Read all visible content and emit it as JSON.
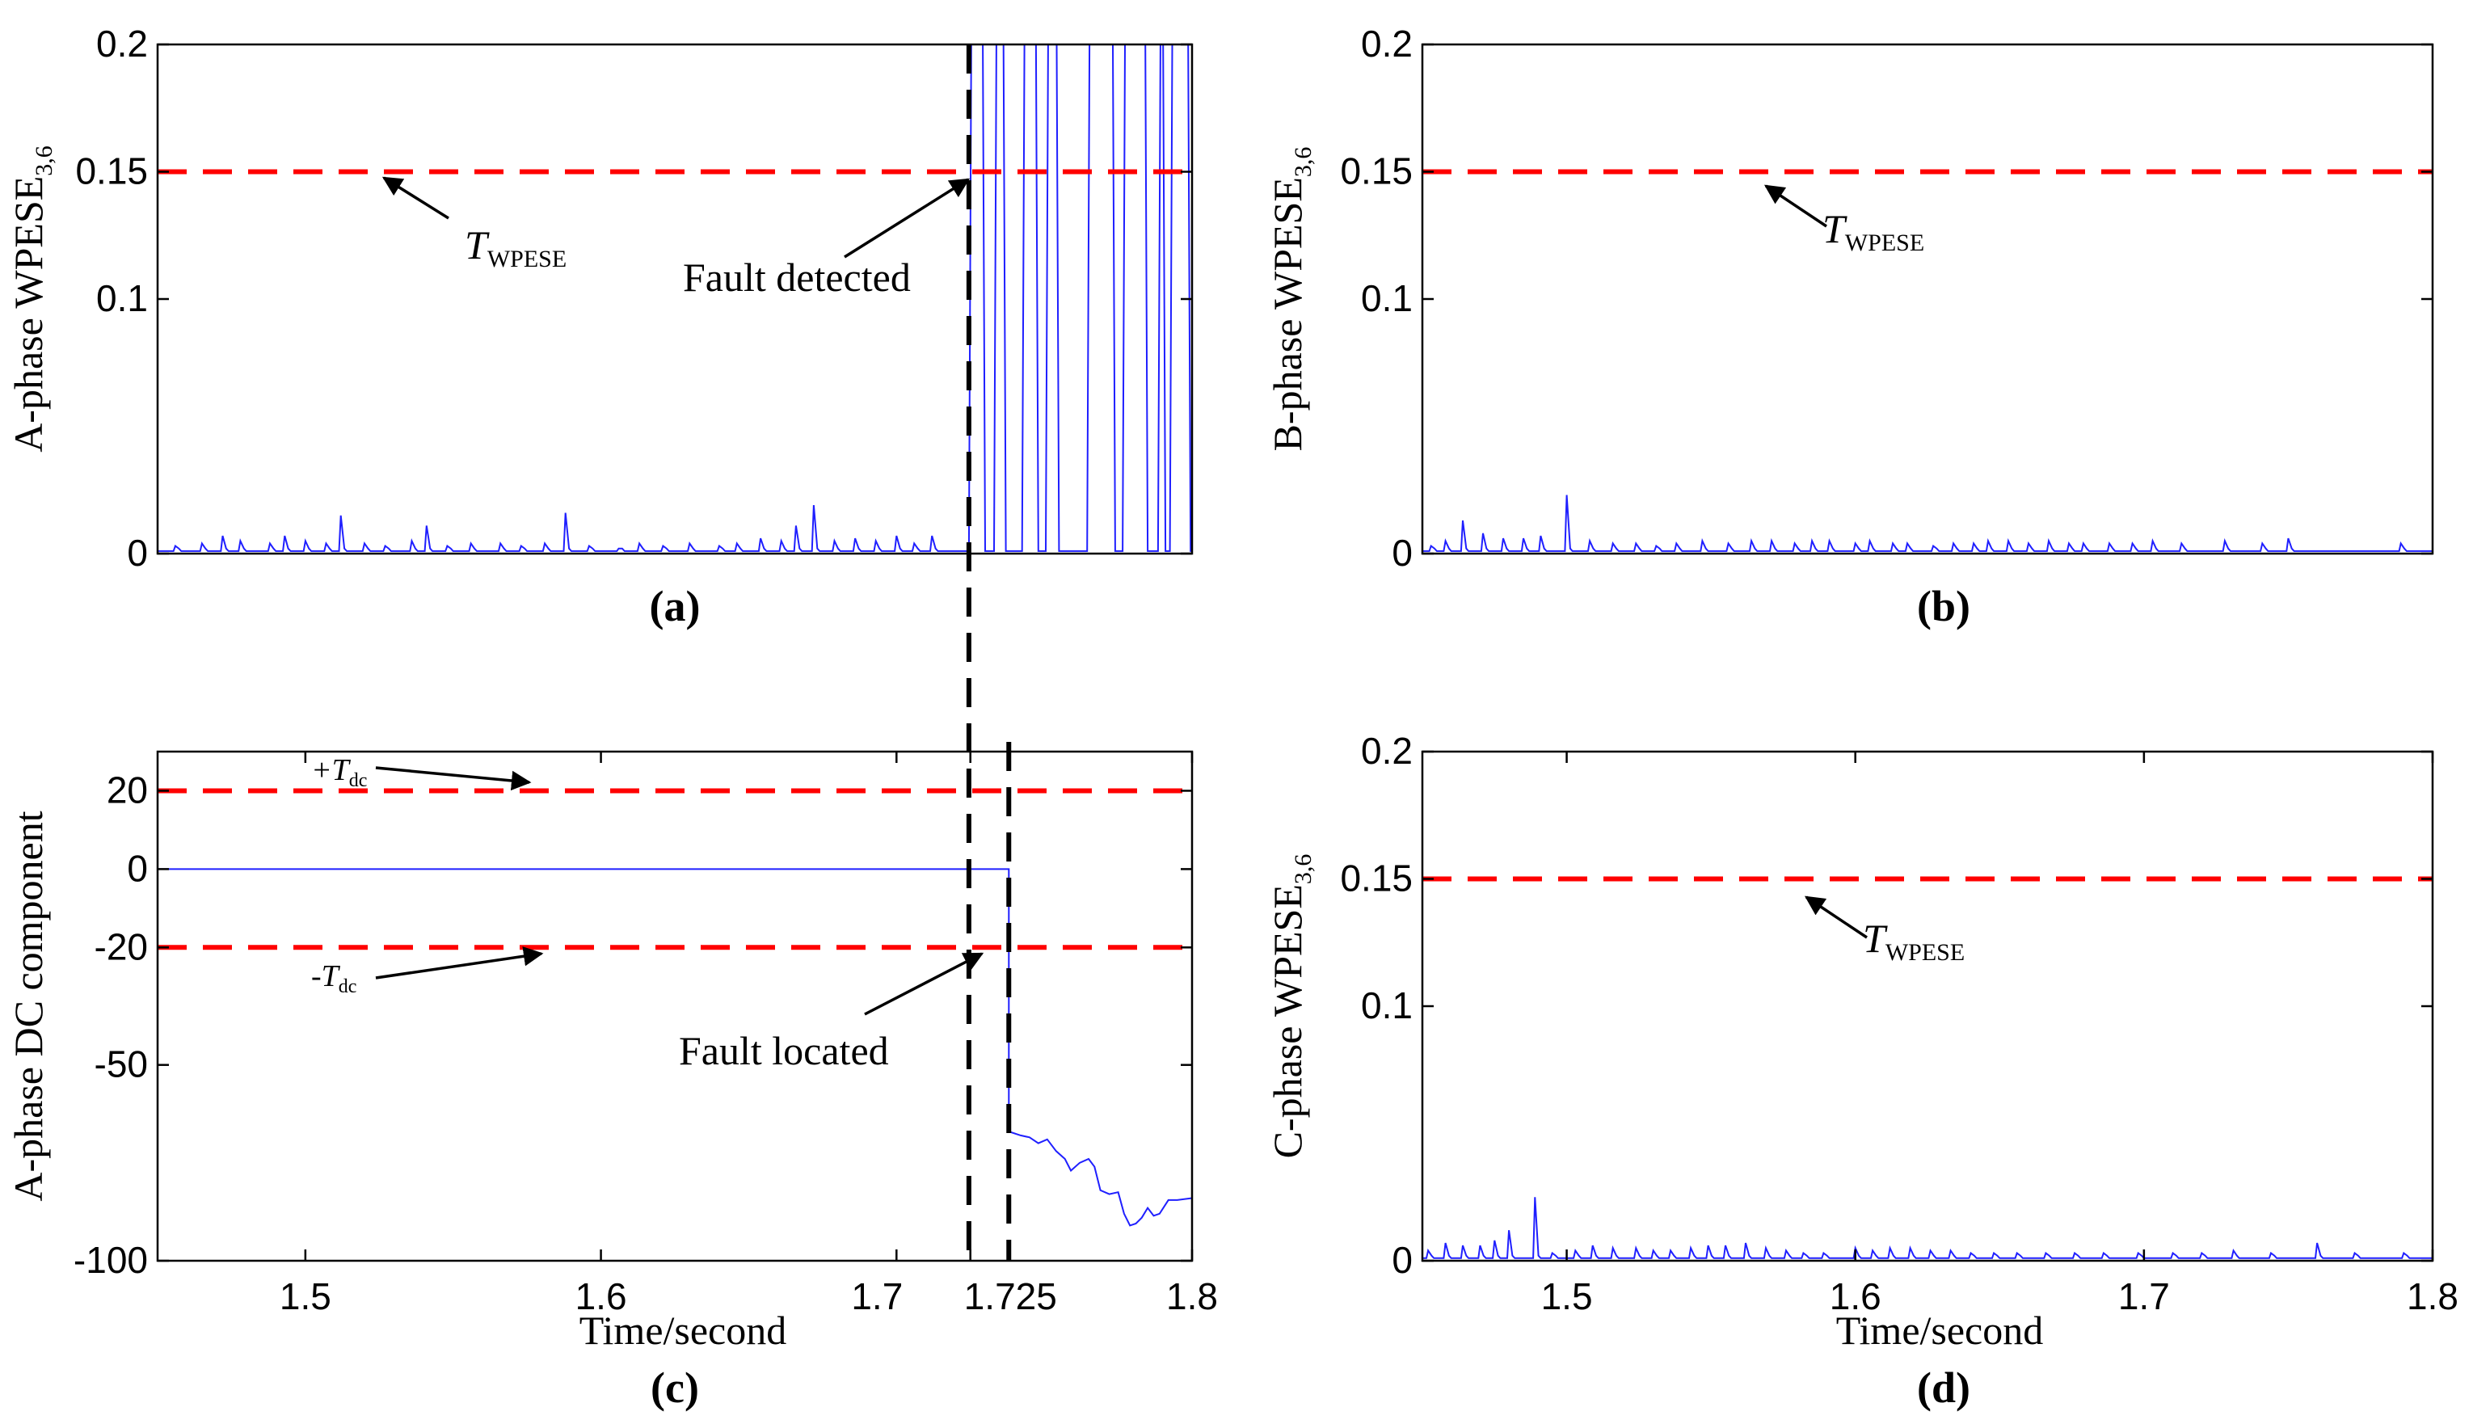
{
  "chart_data": [
    {
      "id": "a",
      "type": "line",
      "panel_label": "(a)",
      "ylabel_main": "A-phase WPESE",
      "ylabel_sub": "3,6",
      "xlabel": "",
      "xlim": [
        1.45,
        1.8
      ],
      "ylim": [
        0,
        0.2
      ],
      "yticks": [
        0,
        0.1,
        0.15,
        0.2
      ],
      "ytick_labels": [
        "0",
        "0.1",
        "0.15",
        "0.2"
      ],
      "xticks": [],
      "xtick_labels": [],
      "threshold": {
        "value": 0.15,
        "color": "#ff0000"
      },
      "series": [
        {
          "name": "A-phase WPESE",
          "color": "#1f1fff",
          "baseline": 0.001,
          "spikes": [
            [
              1.456,
              0.003
            ],
            [
              1.465,
              0.004
            ],
            [
              1.472,
              0.007
            ],
            [
              1.478,
              0.005
            ],
            [
              1.488,
              0.004
            ],
            [
              1.493,
              0.007
            ],
            [
              1.5,
              0.005
            ],
            [
              1.507,
              0.004
            ],
            [
              1.512,
              0.015
            ],
            [
              1.52,
              0.004
            ],
            [
              1.527,
              0.003
            ],
            [
              1.536,
              0.005
            ],
            [
              1.541,
              0.011
            ],
            [
              1.548,
              0.003
            ],
            [
              1.556,
              0.004
            ],
            [
              1.566,
              0.004
            ],
            [
              1.573,
              0.003
            ],
            [
              1.581,
              0.004
            ],
            [
              1.588,
              0.016
            ],
            [
              1.596,
              0.003
            ],
            [
              1.606,
              0.002
            ],
            [
              1.613,
              0.004
            ],
            [
              1.621,
              0.003
            ],
            [
              1.63,
              0.004
            ],
            [
              1.64,
              0.003
            ],
            [
              1.646,
              0.004
            ],
            [
              1.654,
              0.006
            ],
            [
              1.661,
              0.005
            ],
            [
              1.666,
              0.011
            ],
            [
              1.672,
              0.019
            ],
            [
              1.679,
              0.005
            ],
            [
              1.686,
              0.006
            ],
            [
              1.693,
              0.005
            ],
            [
              1.7,
              0.007
            ],
            [
              1.706,
              0.004
            ],
            [
              1.712,
              0.007
            ]
          ],
          "fault_regions": [
            [
              1.7245,
              1.73
            ],
            [
              1.733,
              1.737
            ],
            [
              1.7425,
              1.748
            ],
            [
              1.7505,
              1.755
            ],
            [
              1.7645,
              1.774
            ],
            [
              1.7765,
              1.785
            ],
            [
              1.7885,
              1.791
            ],
            [
              1.7925,
              1.7995
            ]
          ]
        }
      ],
      "annotations": [
        {
          "text": "T",
          "subscript": "WPESE"
        },
        {
          "text": "Fault detected"
        }
      ]
    },
    {
      "id": "b",
      "type": "line",
      "panel_label": "(b)",
      "ylabel_main": "B-phase WPESE",
      "ylabel_sub": "3,6",
      "xlabel": "",
      "xlim": [
        1.45,
        1.8
      ],
      "ylim": [
        0,
        0.2
      ],
      "yticks": [
        0,
        0.1,
        0.15,
        0.2
      ],
      "ytick_labels": [
        "0",
        "0.1",
        "0.15",
        "0.2"
      ],
      "xticks": [],
      "xtick_labels": [],
      "threshold": {
        "value": 0.15,
        "color": "#ff0000"
      },
      "series": [
        {
          "name": "B-phase WPESE",
          "color": "#1f1fff",
          "baseline": 0.001,
          "spikes": [
            [
              1.453,
              0.003
            ],
            [
              1.458,
              0.005
            ],
            [
              1.464,
              0.013
            ],
            [
              1.471,
              0.008
            ],
            [
              1.478,
              0.006
            ],
            [
              1.485,
              0.006
            ],
            [
              1.491,
              0.007
            ],
            [
              1.5,
              0.023
            ],
            [
              1.508,
              0.005
            ],
            [
              1.516,
              0.004
            ],
            [
              1.524,
              0.004
            ],
            [
              1.531,
              0.003
            ],
            [
              1.538,
              0.004
            ],
            [
              1.547,
              0.005
            ],
            [
              1.556,
              0.004
            ],
            [
              1.564,
              0.005
            ],
            [
              1.571,
              0.005
            ],
            [
              1.579,
              0.004
            ],
            [
              1.585,
              0.005
            ],
            [
              1.591,
              0.005
            ],
            [
              1.6,
              0.004
            ],
            [
              1.605,
              0.005
            ],
            [
              1.613,
              0.004
            ],
            [
              1.618,
              0.004
            ],
            [
              1.627,
              0.003
            ],
            [
              1.634,
              0.004
            ],
            [
              1.641,
              0.004
            ],
            [
              1.646,
              0.005
            ],
            [
              1.653,
              0.005
            ],
            [
              1.66,
              0.004
            ],
            [
              1.667,
              0.005
            ],
            [
              1.674,
              0.004
            ],
            [
              1.679,
              0.004
            ],
            [
              1.688,
              0.004
            ],
            [
              1.696,
              0.004
            ],
            [
              1.703,
              0.005
            ],
            [
              1.713,
              0.004
            ],
            [
              1.728,
              0.005
            ],
            [
              1.741,
              0.004
            ],
            [
              1.75,
              0.006
            ],
            [
              1.789,
              0.004
            ]
          ]
        }
      ],
      "annotations": [
        {
          "text": "T",
          "subscript": "WPESE"
        }
      ]
    },
    {
      "id": "c",
      "type": "line",
      "panel_label": "(c)",
      "ylabel_main": "A-phase DC component",
      "ylabel_sub": "",
      "xlabel": "Time/second",
      "xlim": [
        1.45,
        1.8
      ],
      "ylim": [
        -100,
        30
      ],
      "yticks": [
        -100,
        -50,
        -20,
        0,
        20
      ],
      "ytick_labels": [
        "-100",
        "-50",
        "-20",
        "0",
        "20"
      ],
      "xticks": [
        1.5,
        1.6,
        1.7,
        1.725,
        1.8
      ],
      "xtick_labels": [
        "1.5",
        "1.6",
        "1.7",
        "1.725",
        "1.8"
      ],
      "thresholds": [
        {
          "value": 20,
          "color": "#ff0000"
        },
        {
          "value": -20,
          "color": "#ff0000"
        }
      ],
      "series": [
        {
          "name": "A-phase DC component",
          "color": "#1f1fff",
          "points": [
            [
              1.45,
              0
            ],
            [
              1.7245,
              0
            ],
            [
              1.738,
              0
            ],
            [
              1.738,
              -67
            ],
            [
              1.742,
              -68
            ],
            [
              1.745,
              -68.5
            ],
            [
              1.748,
              -70
            ],
            [
              1.751,
              -69
            ],
            [
              1.754,
              -72
            ],
            [
              1.757,
              -74
            ],
            [
              1.759,
              -77
            ],
            [
              1.762,
              -75
            ],
            [
              1.765,
              -74
            ],
            [
              1.767,
              -76
            ],
            [
              1.769,
              -82
            ],
            [
              1.772,
              -83
            ],
            [
              1.775,
              -82.5
            ],
            [
              1.777,
              -88
            ],
            [
              1.779,
              -91
            ],
            [
              1.781,
              -90.5
            ],
            [
              1.783,
              -89
            ],
            [
              1.785,
              -86.5
            ],
            [
              1.787,
              -88.5
            ],
            [
              1.789,
              -88
            ],
            [
              1.792,
              -84.5
            ],
            [
              1.795,
              -84.5
            ],
            [
              1.8,
              -84
            ]
          ]
        }
      ],
      "annotations": [
        {
          "text": "+T",
          "subscript": "dc"
        },
        {
          "text": "-T",
          "subscript": "dc"
        },
        {
          "text": "Fault located"
        }
      ],
      "markers": [
        1.7245,
        1.738
      ]
    },
    {
      "id": "d",
      "type": "line",
      "panel_label": "(d)",
      "ylabel_main": "C-phase WPESE",
      "ylabel_sub": "3,6",
      "xlabel": "Time/second",
      "xlim": [
        1.45,
        1.8
      ],
      "ylim": [
        0,
        0.2
      ],
      "yticks": [
        0,
        0.1,
        0.15,
        0.2
      ],
      "ytick_labels": [
        "0",
        "0.1",
        "0.15",
        "0.2"
      ],
      "xticks": [
        1.5,
        1.6,
        1.7,
        1.8
      ],
      "xtick_labels": [
        "1.5",
        "1.6",
        "1.7",
        "1.8"
      ],
      "threshold": {
        "value": 0.15,
        "color": "#ff0000"
      },
      "series": [
        {
          "name": "C-phase WPESE",
          "color": "#1f1fff",
          "baseline": 0.001,
          "spikes": [
            [
              1.452,
              0.004
            ],
            [
              1.458,
              0.007
            ],
            [
              1.464,
              0.006
            ],
            [
              1.47,
              0.006
            ],
            [
              1.475,
              0.008
            ],
            [
              1.48,
              0.012
            ],
            [
              1.489,
              0.025
            ],
            [
              1.495,
              0.003
            ],
            [
              1.503,
              0.004
            ],
            [
              1.509,
              0.006
            ],
            [
              1.516,
              0.005
            ],
            [
              1.524,
              0.005
            ],
            [
              1.53,
              0.004
            ],
            [
              1.536,
              0.004
            ],
            [
              1.543,
              0.005
            ],
            [
              1.549,
              0.006
            ],
            [
              1.555,
              0.006
            ],
            [
              1.562,
              0.007
            ],
            [
              1.569,
              0.005
            ],
            [
              1.576,
              0.004
            ],
            [
              1.582,
              0.003
            ],
            [
              1.589,
              0.003
            ],
            [
              1.6,
              0.005
            ],
            [
              1.606,
              0.004
            ],
            [
              1.612,
              0.005
            ],
            [
              1.619,
              0.005
            ],
            [
              1.626,
              0.004
            ],
            [
              1.633,
              0.004
            ],
            [
              1.64,
              0.003
            ],
            [
              1.648,
              0.003
            ],
            [
              1.656,
              0.003
            ],
            [
              1.666,
              0.003
            ],
            [
              1.676,
              0.003
            ],
            [
              1.686,
              0.003
            ],
            [
              1.698,
              0.003
            ],
            [
              1.71,
              0.003
            ],
            [
              1.72,
              0.003
            ],
            [
              1.731,
              0.004
            ],
            [
              1.744,
              0.003
            ],
            [
              1.76,
              0.007
            ],
            [
              1.773,
              0.003
            ],
            [
              1.79,
              0.003
            ]
          ]
        }
      ],
      "annotations": [
        {
          "text": "T",
          "subscript": "WPESE"
        }
      ]
    }
  ]
}
